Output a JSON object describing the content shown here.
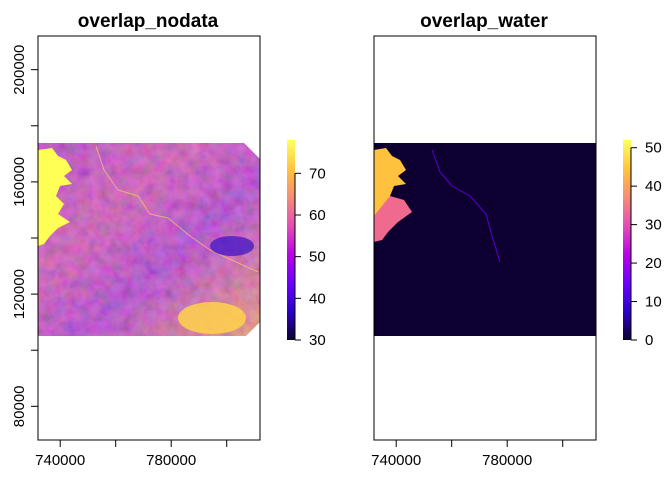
{
  "chart_data": [
    {
      "type": "heatmap",
      "title": "overlap_nodata",
      "xlim": [
        732000,
        812000
      ],
      "ylim": [
        68000,
        212000
      ],
      "x_ticks": [
        {
          "value": 740000,
          "label": "740000"
        },
        {
          "value": 760000,
          "label": ""
        },
        {
          "value": 780000,
          "label": "780000"
        },
        {
          "value": 800000,
          "label": ""
        }
      ],
      "y_ticks": [
        {
          "value": 80000,
          "label": "80000"
        },
        {
          "value": 100000,
          "label": ""
        },
        {
          "value": 120000,
          "label": "120000"
        },
        {
          "value": 140000,
          "label": ""
        },
        {
          "value": 160000,
          "label": "160000"
        },
        {
          "value": 180000,
          "label": ""
        },
        {
          "value": 200000,
          "label": "200000"
        }
      ],
      "raster_extent": {
        "xmin": 732000,
        "xmax": 812000,
        "ymin": 104000,
        "ymax": 174000
      },
      "colorbar": {
        "min": 30,
        "max": 78,
        "ticks": [
          {
            "value": 30,
            "label": "30"
          },
          {
            "value": 40,
            "label": "40"
          },
          {
            "value": 50,
            "label": "50"
          },
          {
            "value": 60,
            "label": "60"
          },
          {
            "value": 70,
            "label": "70"
          }
        ],
        "palette": [
          "#0d0030",
          "#2a00c8",
          "#6a00ff",
          "#b500e8",
          "#e34fb4",
          "#f68a78",
          "#ffc23e",
          "#ffff60"
        ]
      },
      "grid": false,
      "legend": "right colorbar"
    },
    {
      "type": "heatmap",
      "title": "overlap_water",
      "xlim": [
        732000,
        812000
      ],
      "ylim": [
        68000,
        212000
      ],
      "x_ticks": [
        {
          "value": 740000,
          "label": "740000"
        },
        {
          "value": 760000,
          "label": ""
        },
        {
          "value": 780000,
          "label": "780000"
        },
        {
          "value": 800000,
          "label": ""
        }
      ],
      "y_ticks": [],
      "raster_extent": {
        "xmin": 732000,
        "xmax": 812000,
        "ymin": 104000,
        "ymax": 174000
      },
      "colorbar": {
        "min": 0,
        "max": 52,
        "ticks": [
          {
            "value": 0,
            "label": "0"
          },
          {
            "value": 10,
            "label": "10"
          },
          {
            "value": 20,
            "label": "20"
          },
          {
            "value": 30,
            "label": "30"
          },
          {
            "value": 40,
            "label": "40"
          },
          {
            "value": 50,
            "label": "50"
          }
        ],
        "palette": [
          "#0d0030",
          "#2a00c8",
          "#6a00ff",
          "#b500e8",
          "#e34fb4",
          "#f68a78",
          "#ffc23e",
          "#ffff60"
        ]
      },
      "grid": false,
      "legend": "right colorbar"
    }
  ]
}
